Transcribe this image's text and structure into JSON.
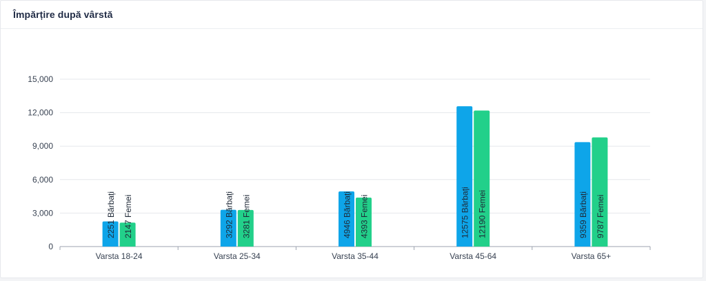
{
  "card": {
    "title": "Împărțire după vârstă"
  },
  "colors": {
    "men": "#0ea5e9",
    "women": "#22d08a",
    "grid": "#e5e7eb",
    "axis": "#9ca3af",
    "tick_text": "#374151",
    "label_text": "#1f2937"
  },
  "chart_data": {
    "type": "bar",
    "categories": [
      "Varsta 18-24",
      "Varsta 25-34",
      "Varsta 35-44",
      "Varsta 45-64",
      "Varsta 65+"
    ],
    "series": [
      {
        "name": "Bărbați",
        "values": [
          2251,
          3292,
          4946,
          12575,
          9359
        ]
      },
      {
        "name": "Femei",
        "values": [
          2147,
          3281,
          4393,
          12190,
          9787
        ]
      }
    ],
    "data_labels": [
      [
        "2251 Bărbați",
        "3292 Bărbați",
        "4946 Bărbați",
        "12575 Bărbați",
        "9359 Bărbați"
      ],
      [
        "2147 Femei",
        "3281 Femei",
        "4393 Femei",
        "12190 Femei",
        "9787 Femei"
      ]
    ],
    "y_ticks": [
      0,
      3000,
      6000,
      9000,
      12000,
      15000
    ],
    "y_tick_labels": [
      "0",
      "3,000",
      "6,000",
      "9,000",
      "12,000",
      "15,000"
    ],
    "ylim": [
      0,
      15000
    ],
    "grid": true,
    "legend": "none"
  }
}
